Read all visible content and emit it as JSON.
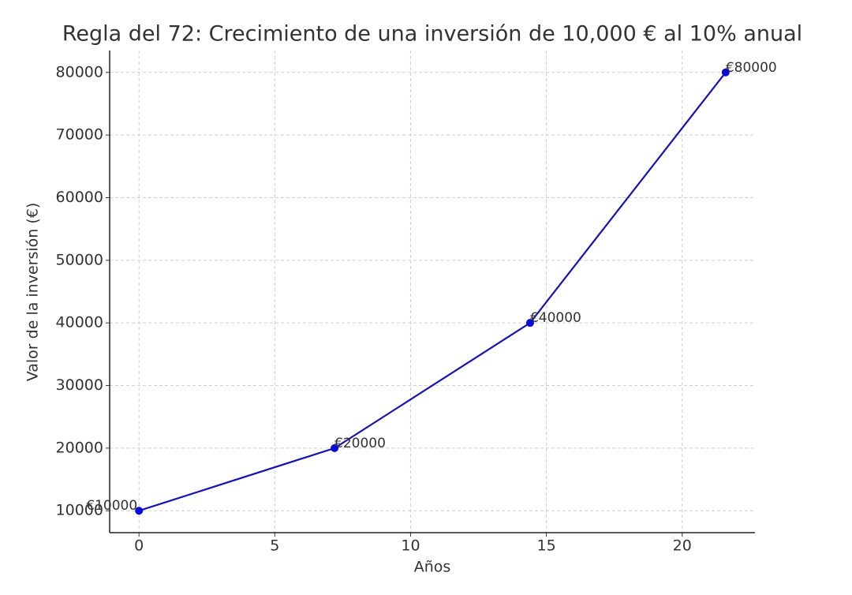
{
  "chart_data": {
    "type": "line",
    "title": "Regla del 72: Crecimiento de una inversión de 10,000 € al 10% anual",
    "x_label": "Años",
    "y_label": "Valor de la inversión (€)",
    "x": [
      0,
      7.2,
      14.4,
      21.6
    ],
    "series": [
      {
        "color": "#1414b4",
        "values": [
          10000,
          20000,
          40000,
          80000
        ],
        "value_labels": [
          "€10000",
          "€20000",
          "€40000",
          "€80000"
        ]
      }
    ],
    "xlim": [
      -1.08,
      22.68
    ],
    "xticks": [
      0,
      5,
      10,
      15,
      20
    ],
    "ylim": [
      6500,
      83500
    ],
    "yticks": [
      10000,
      20000,
      30000,
      40000,
      50000,
      60000,
      70000,
      80000
    ],
    "grid": true
  }
}
